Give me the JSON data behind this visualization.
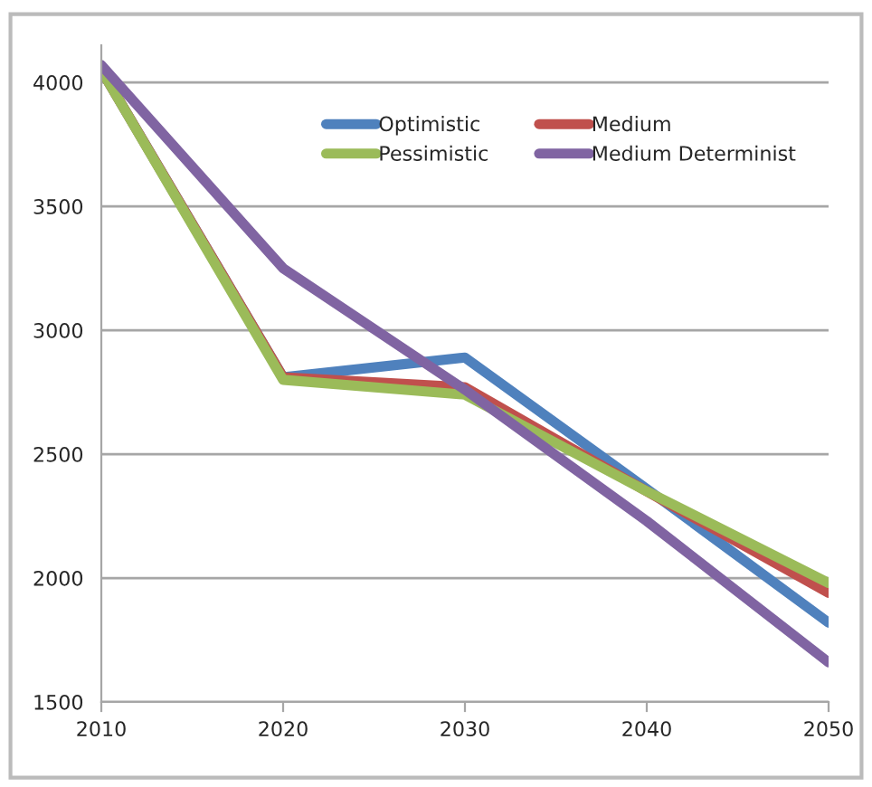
{
  "chart_data": {
    "type": "line",
    "x": [
      2010,
      2020,
      2030,
      2040,
      2050
    ],
    "series": [
      {
        "name": "Optimistic",
        "color": "#4f81bd",
        "values": [
          4050,
          2810,
          2890,
          2360,
          1820
        ]
      },
      {
        "name": "Medium",
        "color": "#c0504d",
        "values": [
          4050,
          2810,
          2770,
          2350,
          1940
        ]
      },
      {
        "name": "Pessimistic",
        "color": "#9bbb59",
        "values": [
          4050,
          2800,
          2740,
          2350,
          1980
        ]
      },
      {
        "name": "Medium Determinist",
        "color": "#8064a2",
        "values": [
          4070,
          3250,
          2760,
          2230,
          1660
        ]
      }
    ],
    "xlim": [
      2010,
      2050
    ],
    "xticks": [
      2010,
      2020,
      2030,
      2040,
      2050
    ],
    "ylim": [
      1500,
      4150
    ],
    "yticks": [
      1500,
      2000,
      2500,
      3000,
      3500,
      4000
    ],
    "grid": "y",
    "legend": "top right",
    "marker": "none",
    "line_style": "solid"
  }
}
